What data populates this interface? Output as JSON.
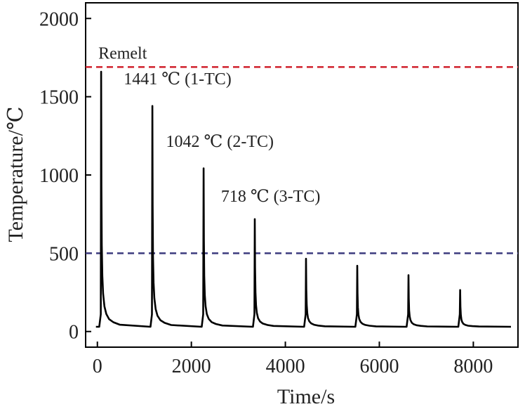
{
  "chart_data": {
    "type": "line",
    "title": "",
    "xlabel": "Time/s",
    "ylabel": "Temperature/℃",
    "xlim": [
      -250,
      8950
    ],
    "ylim": [
      -100,
      2100
    ],
    "xticks": [
      0,
      2000,
      4000,
      6000,
      8000
    ],
    "yticks": [
      0,
      500,
      1000,
      1500,
      2000
    ],
    "xtick_labels": [
      "0",
      "2000",
      "4000",
      "6000",
      "8000"
    ],
    "ytick_labels": [
      "0",
      "500",
      "1000",
      "1500",
      "2000"
    ],
    "grid": false,
    "legend": "none",
    "reference_lines": [
      {
        "label": "Remelt",
        "y": 1690,
        "color": "#d0202c",
        "style": "dashed"
      },
      {
        "label": "",
        "y": 500,
        "color": "#3c3a7e",
        "style": "dashed"
      }
    ],
    "annotations": [
      {
        "text": "1441 ℃ (1-TC)",
        "x": 560,
        "y": 1580
      },
      {
        "text": "1042 ℃ (2-TC)",
        "x": 1460,
        "y": 1180
      },
      {
        "text": "718 ℃ (3-TC)",
        "x": 2630,
        "y": 830
      }
    ],
    "series": [
      {
        "name": "",
        "color": "#000000",
        "baseline": [
          [
            -30,
            30
          ],
          [
            1130,
            30
          ],
          [
            1130,
            30
          ],
          [
            2230,
            30
          ],
          [
            2230,
            30
          ],
          [
            3320,
            30
          ],
          [
            3320,
            30
          ],
          [
            4420,
            30
          ],
          [
            4420,
            30
          ],
          [
            5510,
            30
          ],
          [
            5510,
            30
          ],
          [
            6600,
            25
          ],
          [
            6600,
            25
          ],
          [
            7690,
            25
          ],
          [
            7690,
            25
          ],
          [
            8800,
            25
          ]
        ],
        "peaks": [
          {
            "x": 80,
            "peak": 1660
          },
          {
            "x": 1170,
            "peak": 1441
          },
          {
            "x": 2260,
            "peak": 1042
          },
          {
            "x": 3350,
            "peak": 718
          },
          {
            "x": 4440,
            "peak": 465
          },
          {
            "x": 5530,
            "peak": 420
          },
          {
            "x": 6620,
            "peak": 360
          },
          {
            "x": 7720,
            "peak": 265
          }
        ]
      }
    ]
  }
}
